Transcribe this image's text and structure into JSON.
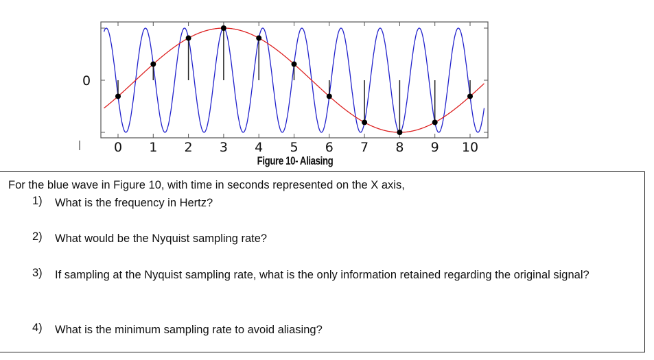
{
  "chart_data": {
    "type": "line",
    "title": "",
    "caption": "Figure 10- Aliasing",
    "xlabel": "",
    "ylabel": "",
    "xlim": [
      -0.5,
      10.5
    ],
    "ylim": [
      -1.1,
      1.1
    ],
    "x_ticks": [
      "0",
      "1",
      "2",
      "3",
      "4",
      "5",
      "6",
      "7",
      "8",
      "9",
      "10"
    ],
    "y_ticks": [
      "0"
    ],
    "grid": false,
    "legend": "none",
    "series": [
      {
        "color": "#2222cc",
        "function": "cos(2*pi*0.9*(t-3))",
        "frequency": 0.9,
        "amplitude": 1,
        "x_range": [
          -0.4,
          10.4
        ]
      },
      {
        "color": "#dd2222",
        "function": "cos(2*pi*0.1*(t-3))",
        "frequency": 0.1,
        "amplitude": 1,
        "x_range": [
          -0.4,
          10.4
        ]
      }
    ],
    "samples": {
      "color": "#000000",
      "x": [
        0,
        1,
        2,
        3,
        4,
        5,
        6,
        7,
        8,
        9,
        10
      ],
      "y": [
        -0.309,
        0.309,
        0.809,
        1,
        0.809,
        0.309,
        -0.309,
        -0.809,
        -1,
        -0.809,
        -0.309
      ]
    }
  },
  "questions": {
    "intro": "For the blue wave in Figure 10, with time in seconds represented on the X axis,",
    "items": [
      {
        "num": "1)",
        "text": "What is the frequency in Hertz?"
      },
      {
        "num": "2)",
        "text": "What would be the Nyquist sampling rate?"
      },
      {
        "num": "3)",
        "text": "If sampling at the Nyquist sampling rate, what is the only information retained regarding the original signal?"
      },
      {
        "num": "4)",
        "text": "What is the minimum sampling rate to avoid aliasing?"
      }
    ]
  }
}
